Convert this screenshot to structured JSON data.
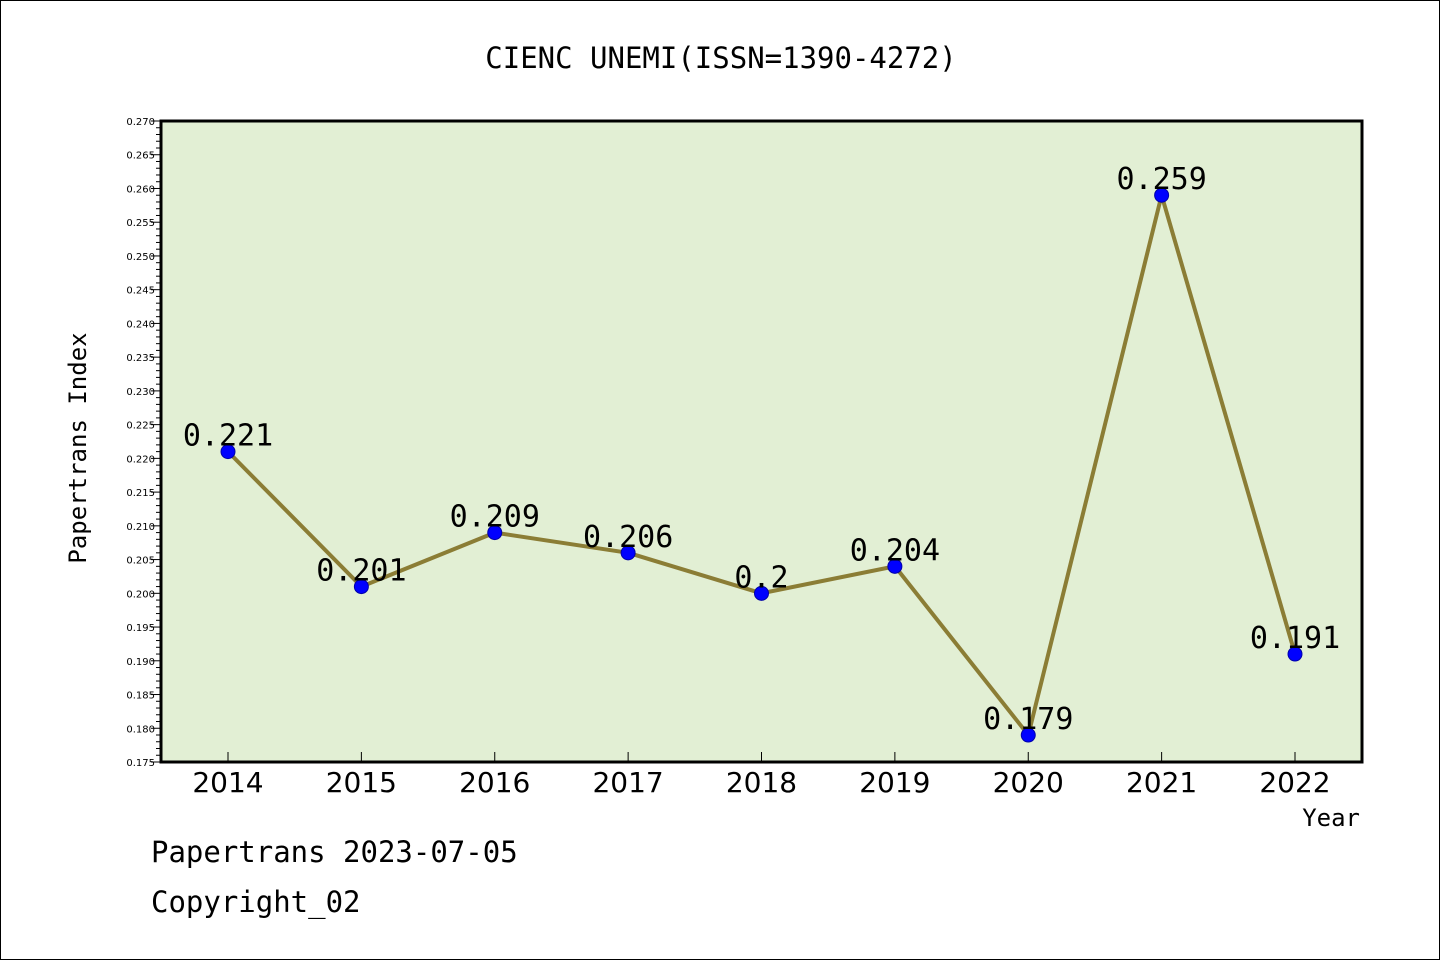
{
  "chart_data": {
    "type": "line",
    "title": "CIENC UNEMI(ISSN=1390-4272)",
    "xlabel": "Year",
    "ylabel": "Papertrans Index",
    "categories": [
      "2014",
      "2015",
      "2016",
      "2017",
      "2018",
      "2019",
      "2020",
      "2021",
      "2022"
    ],
    "series": [
      {
        "values": [
          0.221,
          0.201,
          0.209,
          0.206,
          0.2,
          0.204,
          0.179,
          0.259,
          0.191
        ],
        "data_labels": [
          "0.221",
          "0.201",
          "0.209",
          "0.206",
          "0.2",
          "0.204",
          "0.179",
          "0.259",
          "0.191"
        ]
      }
    ],
    "ylim": [
      0.175,
      0.27
    ],
    "y_ticks": [
      "0.175",
      "0.180",
      "0.185",
      "0.190",
      "0.195",
      "0.200",
      "0.205",
      "0.210",
      "0.215",
      "0.220",
      "0.225",
      "0.230",
      "0.235",
      "0.240",
      "0.245",
      "0.250",
      "0.255",
      "0.260",
      "0.265",
      "0.270"
    ],
    "grid": false,
    "colors": {
      "plot_background": "#e2efd4",
      "line": "#8b7d35",
      "marker": "#0000ff"
    }
  },
  "footer": {
    "line1": "Papertrans 2023-07-05",
    "line2": "Copyright_02"
  }
}
